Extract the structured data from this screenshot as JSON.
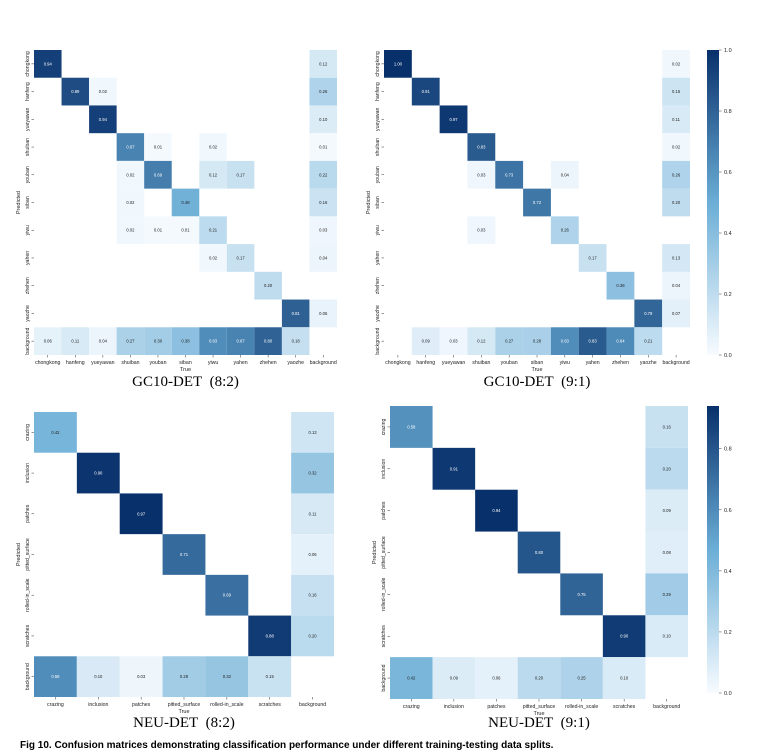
{
  "figure_caption": "Fig 10. Confusion matrices demonstrating classification performance under different training-testing data splits.",
  "colors": {
    "low": "#f7fbff",
    "mid": "#6baed6",
    "high": "#08306b"
  },
  "chart_data": [
    {
      "type": "heatmap",
      "title": "GC10-DET  (8:2)",
      "xlabel": "True",
      "ylabel": "Predicted",
      "categories": [
        "chongkong",
        "hanfeng",
        "yueyawan",
        "shuiban",
        "youban",
        "siban",
        "yiwu",
        "yahen",
        "zhehen",
        "yaozhe",
        "background"
      ],
      "vmax": 1.0,
      "colorbar_ticks": [],
      "cells": [
        [
          0,
          0,
          0.94
        ],
        [
          0,
          10,
          0.12
        ],
        [
          1,
          1,
          0.89
        ],
        [
          1,
          2,
          0.02
        ],
        [
          1,
          10,
          0.26
        ],
        [
          2,
          2,
          0.94
        ],
        [
          2,
          10,
          0.1
        ],
        [
          3,
          3,
          0.67
        ],
        [
          3,
          4,
          0.01
        ],
        [
          3,
          6,
          0.02
        ],
        [
          3,
          10,
          0.01
        ],
        [
          4,
          3,
          0.02
        ],
        [
          4,
          4,
          0.69
        ],
        [
          4,
          6,
          0.12
        ],
        [
          4,
          7,
          0.17
        ],
        [
          4,
          10,
          0.22
        ],
        [
          5,
          3,
          0.02
        ],
        [
          5,
          5,
          0.48
        ],
        [
          5,
          10,
          0.16
        ],
        [
          6,
          3,
          0.02
        ],
        [
          6,
          4,
          0.01
        ],
        [
          6,
          5,
          0.01
        ],
        [
          6,
          6,
          0.21
        ],
        [
          6,
          10,
          0.03
        ],
        [
          7,
          6,
          0.02
        ],
        [
          7,
          7,
          0.17
        ],
        [
          7,
          10,
          0.04
        ],
        [
          8,
          8,
          0.2
        ],
        [
          9,
          9,
          0.81
        ],
        [
          9,
          10,
          0.05
        ],
        [
          10,
          0,
          0.06
        ],
        [
          10,
          1,
          0.11
        ],
        [
          10,
          2,
          0.04
        ],
        [
          10,
          3,
          0.27
        ],
        [
          10,
          4,
          0.3
        ],
        [
          10,
          5,
          0.38
        ],
        [
          10,
          6,
          0.63
        ],
        [
          10,
          7,
          0.67
        ],
        [
          10,
          8,
          0.8
        ],
        [
          10,
          9,
          0.18
        ]
      ]
    },
    {
      "type": "heatmap",
      "title": "GC10-DET  (9:1)",
      "xlabel": "True",
      "ylabel": "Predicted",
      "categories": [
        "chongkong",
        "hanfeng",
        "yueyawan",
        "shuiban",
        "youban",
        "siban",
        "yiwu",
        "yahen",
        "zhehen",
        "yaozhe",
        "background"
      ],
      "vmax": 1.0,
      "colorbar_ticks": [
        "1.0",
        "0.8",
        "0.6",
        "0.4",
        "0.2",
        "0.0"
      ],
      "cells": [
        [
          0,
          0,
          1.0
        ],
        [
          0,
          10,
          0.02
        ],
        [
          1,
          1,
          0.91
        ],
        [
          1,
          10,
          0.15
        ],
        [
          2,
          2,
          0.97
        ],
        [
          2,
          10,
          0.11
        ],
        [
          3,
          3,
          0.83
        ],
        [
          3,
          10,
          0.02
        ],
        [
          4,
          3,
          0.03
        ],
        [
          4,
          4,
          0.73
        ],
        [
          4,
          6,
          0.04
        ],
        [
          4,
          10,
          0.26
        ],
        [
          5,
          5,
          0.72
        ],
        [
          5,
          10,
          0.2
        ],
        [
          6,
          3,
          0.03
        ],
        [
          6,
          6,
          0.26
        ],
        [
          7,
          7,
          0.17
        ],
        [
          7,
          10,
          0.13
        ],
        [
          8,
          8,
          0.38
        ],
        [
          8,
          10,
          0.04
        ],
        [
          9,
          9,
          0.79
        ],
        [
          9,
          10,
          0.07
        ],
        [
          10,
          1,
          0.09
        ],
        [
          10,
          2,
          0.03
        ],
        [
          10,
          3,
          0.12
        ],
        [
          10,
          4,
          0.27
        ],
        [
          10,
          5,
          0.28
        ],
        [
          10,
          6,
          0.63
        ],
        [
          10,
          7,
          0.83
        ],
        [
          10,
          8,
          0.64
        ],
        [
          10,
          9,
          0.21
        ]
      ]
    },
    {
      "type": "heatmap",
      "title": "NEU-DET  (8:2)",
      "xlabel": "True",
      "ylabel": "Predicted",
      "categories": [
        "crazing",
        "inclusion",
        "patches",
        "pitted_surface",
        "rolled-in_scale",
        "scratches",
        "background"
      ],
      "vmax": 0.92,
      "colorbar_ticks": [],
      "cells": [
        [
          0,
          0,
          0.42
        ],
        [
          0,
          6,
          0.13
        ],
        [
          1,
          1,
          0.9
        ],
        [
          1,
          6,
          0.32
        ],
        [
          2,
          2,
          0.97
        ],
        [
          2,
          6,
          0.11
        ],
        [
          3,
          3,
          0.71
        ],
        [
          3,
          6,
          0.06
        ],
        [
          4,
          4,
          0.69
        ],
        [
          4,
          6,
          0.16
        ],
        [
          5,
          5,
          0.88
        ],
        [
          5,
          6,
          0.2
        ],
        [
          6,
          0,
          0.58
        ],
        [
          6,
          1,
          0.1
        ],
        [
          6,
          2,
          0.03
        ],
        [
          6,
          3,
          0.28
        ],
        [
          6,
          4,
          0.32
        ],
        [
          6,
          5,
          0.15
        ]
      ]
    },
    {
      "type": "heatmap",
      "title": "NEU-DET  (9:1)",
      "xlabel": "True",
      "ylabel": "Predicted",
      "categories": [
        "crazing",
        "inclusion",
        "patches",
        "pitted_surface",
        "rolled-in_scale",
        "scratches",
        "background"
      ],
      "vmax": 0.94,
      "colorbar_ticks": [
        "0.8",
        "0.6",
        "0.4",
        "0.2",
        "0.0"
      ],
      "cells": [
        [
          0,
          0,
          0.58
        ],
        [
          0,
          6,
          0.16
        ],
        [
          1,
          1,
          0.91
        ],
        [
          1,
          6,
          0.2
        ],
        [
          2,
          2,
          0.94
        ],
        [
          2,
          6,
          0.09
        ],
        [
          3,
          3,
          0.8
        ],
        [
          3,
          6,
          0.08
        ],
        [
          4,
          4,
          0.75
        ],
        [
          4,
          6,
          0.29
        ],
        [
          5,
          5,
          0.9
        ],
        [
          5,
          6,
          0.1
        ],
        [
          6,
          0,
          0.42
        ],
        [
          6,
          1,
          0.09
        ],
        [
          6,
          2,
          0.06
        ],
        [
          6,
          3,
          0.2
        ],
        [
          6,
          4,
          0.25
        ],
        [
          6,
          5,
          0.1
        ]
      ]
    }
  ]
}
